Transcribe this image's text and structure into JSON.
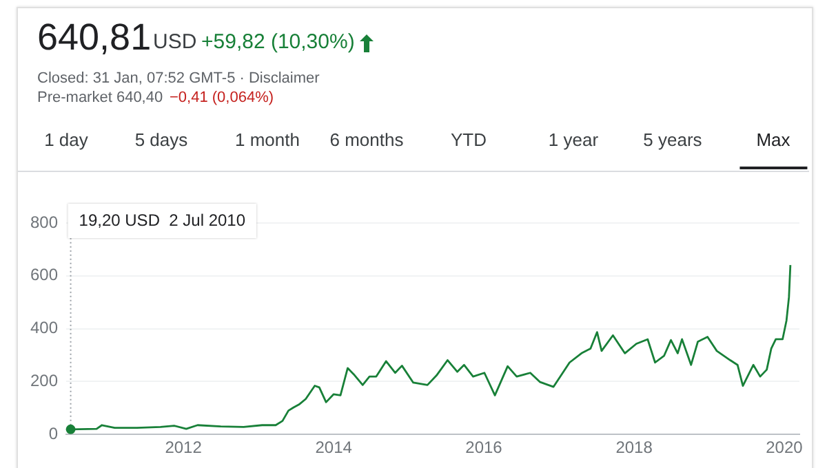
{
  "chart_data": {
    "type": "line",
    "x": [
      "2010-07-02",
      "2010-11-05",
      "2010-12-01",
      "2011-02-01",
      "2011-05-20",
      "2011-09-12",
      "2011-11-17",
      "2012-01-15",
      "2012-03-10",
      "2012-07-01",
      "2012-10-20",
      "2013-01-18",
      "2013-03-25",
      "2013-04-27",
      "2013-05-26",
      "2013-06-20",
      "2013-07-16",
      "2013-08-18",
      "2013-10-01",
      "2013-10-23",
      "2013-11-25",
      "2014-01-01",
      "2014-02-03",
      "2014-03-10",
      "2014-04-08",
      "2014-05-22",
      "2014-06-24",
      "2014-07-27",
      "2014-09-13",
      "2014-10-27",
      "2014-11-29",
      "2015-01-23",
      "2015-04-02",
      "2015-05-16",
      "2015-07-09",
      "2015-08-25",
      "2015-09-27",
      "2015-11-10",
      "2016-01-04",
      "2016-02-24",
      "2016-04-26",
      "2016-06-09",
      "2016-08-14",
      "2016-10-01",
      "2016-12-05",
      "2017-02-21",
      "2017-04-20",
      "2017-06-03",
      "2017-07-05",
      "2017-07-27",
      "2017-09-20",
      "2017-11-17",
      "2018-01-12",
      "2018-03-08",
      "2018-04-13",
      "2018-05-27",
      "2018-06-29",
      "2018-08-01",
      "2018-08-22",
      "2018-10-05",
      "2018-11-07",
      "2018-12-24",
      "2019-02-07",
      "2019-04-13",
      "2019-05-19",
      "2019-06-14",
      "2019-08-04",
      "2019-09-06",
      "2019-10-08",
      "2019-10-30",
      "2019-11-21",
      "2019-12-24",
      "2020-01-12",
      "2020-01-24",
      "2020-01-31"
    ],
    "series": [
      {
        "color": "#188038",
        "values": [
          19.2,
          21,
          35,
          25,
          25,
          28,
          33,
          21,
          35,
          30,
          28,
          35,
          35,
          51,
          90,
          102,
          113,
          134,
          184,
          178,
          122,
          152,
          148,
          251,
          228,
          187,
          219,
          219,
          277,
          233,
          260,
          196,
          187,
          223,
          281,
          237,
          263,
          219,
          233,
          148,
          258,
          219,
          233,
          198,
          180,
          272,
          307,
          325,
          387,
          316,
          375,
          307,
          343,
          360,
          272,
          298,
          357,
          307,
          360,
          263,
          351,
          369,
          316,
          281,
          263,
          184,
          263,
          219,
          245,
          325,
          360,
          360,
          431,
          519,
          640.81
        ]
      }
    ],
    "xlim": [
      "2010-06-10",
      "2020-03-15"
    ],
    "xticks": [
      "2012",
      "2014",
      "2016",
      "2018",
      "2020"
    ],
    "ylim": [
      0,
      800
    ],
    "yticks": [
      0,
      200,
      400,
      600,
      800
    ],
    "grid": "y",
    "legend": false,
    "marker": "none",
    "line_style": "solid",
    "annotations": [
      "640,81",
      "USD",
      "+59,82 (10,30%)",
      "Closed: 31 Jan, 07:52 GMT-5 · Disclaimer",
      "Pre-market 640,40",
      "−0,41 (0,064%)",
      "1 day",
      "5 days",
      "1 month",
      "6 months",
      "YTD",
      "1 year",
      "5 years",
      "Max",
      {
        "text": "19,20 USD  2 Jul 2010",
        "x": "2010-07-02",
        "y": 19.2
      }
    ]
  }
}
